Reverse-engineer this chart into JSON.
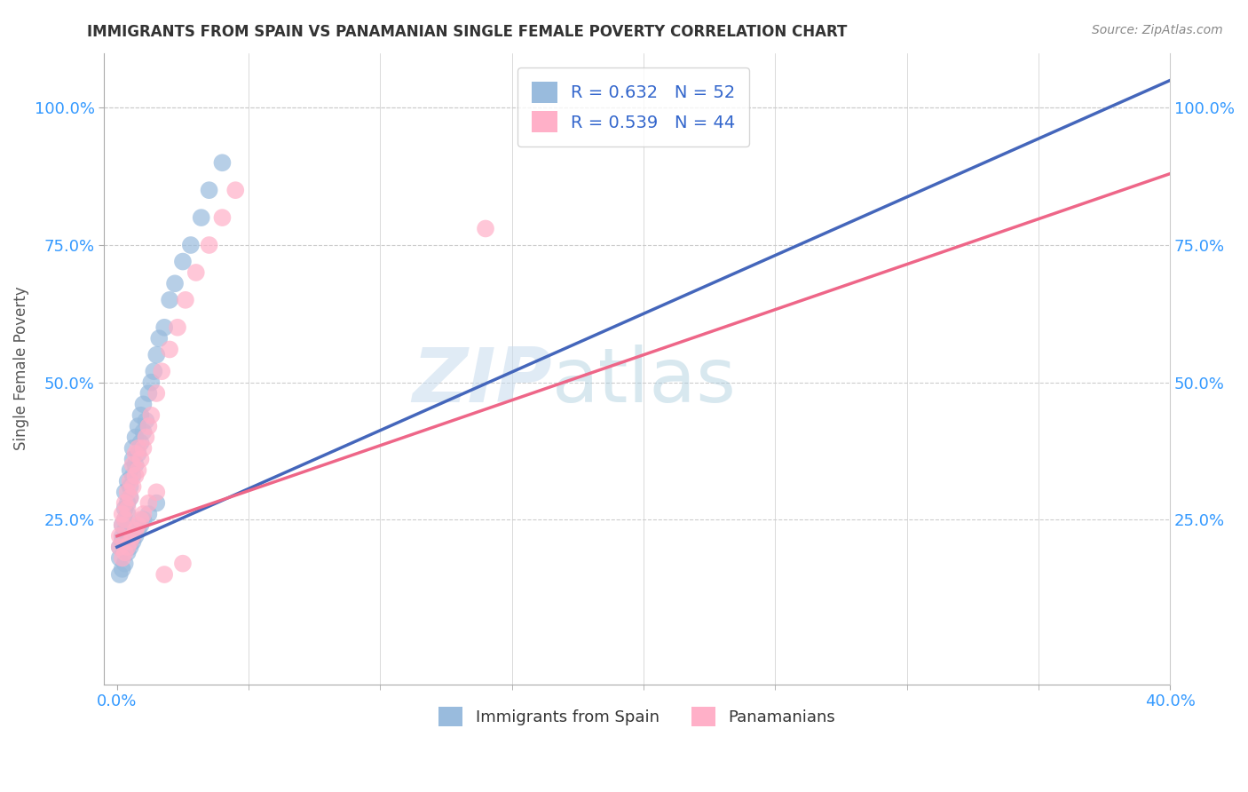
{
  "title": "IMMIGRANTS FROM SPAIN VS PANAMANIAN SINGLE FEMALE POVERTY CORRELATION CHART",
  "source": "Source: ZipAtlas.com",
  "ylabel": "Single Female Poverty",
  "x_tick_labels_bottom": [
    "0.0%",
    "40.0%"
  ],
  "x_tick_positions_bottom": [
    0.0,
    0.4
  ],
  "x_minor_ticks": [
    0.05,
    0.1,
    0.15,
    0.2,
    0.25,
    0.3,
    0.35
  ],
  "y_tick_labels": [
    "25.0%",
    "50.0%",
    "75.0%",
    "100.0%"
  ],
  "y_tick_positions": [
    0.25,
    0.5,
    0.75,
    1.0
  ],
  "xlim": [
    -0.005,
    0.4
  ],
  "ylim": [
    -0.05,
    1.1
  ],
  "R_blue": 0.632,
  "N_blue": 52,
  "R_pink": 0.539,
  "N_pink": 44,
  "blue_color": "#99BBDD",
  "pink_color": "#FFB0C8",
  "blue_line_color": "#4466BB",
  "pink_line_color": "#EE6688",
  "legend_label_blue": "Immigrants from Spain",
  "legend_label_pink": "Panamanians",
  "watermark_zip": "ZIP",
  "watermark_atlas": "atlas",
  "blue_scatter_x": [
    0.001,
    0.001,
    0.002,
    0.002,
    0.002,
    0.003,
    0.003,
    0.003,
    0.003,
    0.004,
    0.004,
    0.004,
    0.005,
    0.005,
    0.005,
    0.006,
    0.006,
    0.006,
    0.007,
    0.007,
    0.008,
    0.008,
    0.009,
    0.009,
    0.01,
    0.01,
    0.011,
    0.012,
    0.013,
    0.014,
    0.015,
    0.016,
    0.018,
    0.02,
    0.022,
    0.025,
    0.028,
    0.032,
    0.035,
    0.04,
    0.001,
    0.002,
    0.003,
    0.004,
    0.005,
    0.006,
    0.007,
    0.008,
    0.009,
    0.01,
    0.012,
    0.015
  ],
  "blue_scatter_y": [
    0.2,
    0.18,
    0.22,
    0.21,
    0.24,
    0.23,
    0.25,
    0.27,
    0.3,
    0.26,
    0.28,
    0.32,
    0.29,
    0.31,
    0.34,
    0.33,
    0.36,
    0.38,
    0.35,
    0.4,
    0.37,
    0.42,
    0.39,
    0.44,
    0.41,
    0.46,
    0.43,
    0.48,
    0.5,
    0.52,
    0.55,
    0.58,
    0.6,
    0.65,
    0.68,
    0.72,
    0.75,
    0.8,
    0.85,
    0.9,
    0.15,
    0.16,
    0.17,
    0.19,
    0.2,
    0.21,
    0.22,
    0.23,
    0.24,
    0.25,
    0.26,
    0.28
  ],
  "pink_scatter_x": [
    0.001,
    0.001,
    0.002,
    0.002,
    0.003,
    0.003,
    0.004,
    0.004,
    0.005,
    0.005,
    0.006,
    0.006,
    0.007,
    0.007,
    0.008,
    0.008,
    0.009,
    0.01,
    0.011,
    0.012,
    0.013,
    0.015,
    0.017,
    0.02,
    0.023,
    0.026,
    0.03,
    0.035,
    0.04,
    0.045,
    0.002,
    0.003,
    0.004,
    0.005,
    0.006,
    0.007,
    0.008,
    0.009,
    0.01,
    0.012,
    0.015,
    0.018,
    0.025,
    0.14
  ],
  "pink_scatter_y": [
    0.2,
    0.22,
    0.24,
    0.26,
    0.25,
    0.28,
    0.27,
    0.3,
    0.29,
    0.32,
    0.31,
    0.35,
    0.33,
    0.37,
    0.34,
    0.38,
    0.36,
    0.38,
    0.4,
    0.42,
    0.44,
    0.48,
    0.52,
    0.56,
    0.6,
    0.65,
    0.7,
    0.75,
    0.8,
    0.85,
    0.18,
    0.19,
    0.2,
    0.21,
    0.22,
    0.23,
    0.24,
    0.25,
    0.26,
    0.28,
    0.3,
    0.15,
    0.17,
    0.78
  ],
  "blue_line_x": [
    0.0,
    0.4
  ],
  "blue_line_y": [
    0.2,
    1.05
  ],
  "pink_line_x": [
    0.0,
    0.4
  ],
  "pink_line_y": [
    0.22,
    0.88
  ]
}
